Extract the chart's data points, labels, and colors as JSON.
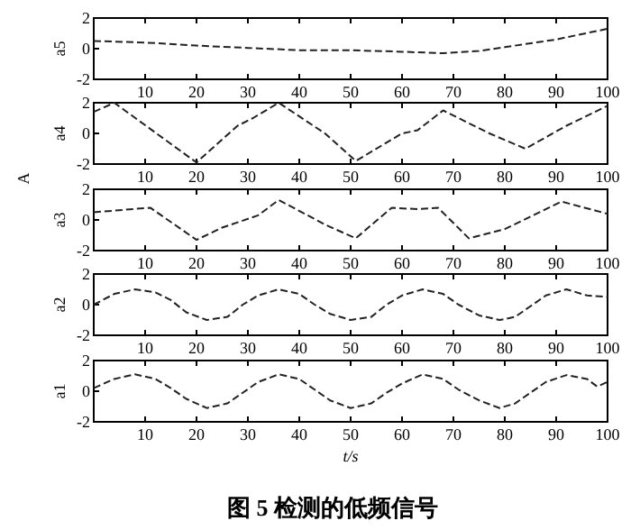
{
  "chart_data": [
    {
      "type": "line",
      "ylabel": "a5",
      "x": [
        0,
        10,
        20,
        30,
        40,
        50,
        60,
        68,
        75,
        80,
        90,
        100
      ],
      "xlim": [
        0,
        100
      ],
      "ylim": [
        -2,
        2
      ],
      "xticks": [
        10,
        20,
        30,
        40,
        50,
        60,
        70,
        80,
        90,
        100
      ],
      "yticks": [
        -2,
        0,
        2
      ],
      "line_style": "dashed",
      "grid": false,
      "series": [
        {
          "color": "#222222",
          "values": [
            0.5,
            0.4,
            0.2,
            0.05,
            -0.1,
            -0.1,
            -0.2,
            -0.3,
            -0.15,
            0.1,
            0.6,
            1.3
          ]
        }
      ]
    },
    {
      "type": "line",
      "ylabel": "a4",
      "x": [
        0,
        4,
        20,
        28,
        31,
        36,
        45,
        51,
        60,
        63,
        68,
        77,
        84,
        92,
        100
      ],
      "xlim": [
        0,
        100
      ],
      "ylim": [
        -2,
        2
      ],
      "xticks": [
        10,
        20,
        30,
        40,
        50,
        60,
        70,
        80,
        90,
        100
      ],
      "yticks": [
        -2,
        0,
        2
      ],
      "line_style": "dashed",
      "grid": false,
      "series": [
        {
          "color": "#222222",
          "values": [
            1.4,
            2,
            -1.9,
            0.5,
            1,
            2,
            0,
            -1.8,
            0,
            0.2,
            1.5,
            0,
            -1,
            0.5,
            1.8
          ]
        }
      ]
    },
    {
      "type": "line",
      "ylabel": "a3",
      "annotations": [
        "A"
      ],
      "x": [
        0,
        11,
        20,
        25,
        32,
        36,
        45,
        51,
        58,
        63,
        67,
        73,
        80,
        91,
        100
      ],
      "xlim": [
        0,
        100
      ],
      "ylim": [
        -2,
        2
      ],
      "xticks": [
        10,
        20,
        30,
        40,
        50,
        60,
        70,
        80,
        90,
        100
      ],
      "yticks": [
        -2,
        0,
        2
      ],
      "line_style": "dashed",
      "grid": false,
      "series": [
        {
          "color": "#222222",
          "values": [
            0.5,
            0.8,
            -1.3,
            -0.5,
            0.3,
            1.3,
            -0.3,
            -1.2,
            0.8,
            0.7,
            0.8,
            -1.2,
            -0.6,
            1.2,
            0.4
          ]
        }
      ]
    },
    {
      "type": "line",
      "ylabel": "a2",
      "x": [
        0,
        4,
        8,
        12,
        15,
        18,
        22,
        26,
        29,
        32,
        36,
        40,
        43,
        46,
        50,
        54,
        57,
        60,
        64,
        68,
        71,
        75,
        79,
        82,
        85,
        88,
        92,
        96,
        100
      ],
      "xlim": [
        0,
        100
      ],
      "ylim": [
        -2,
        2
      ],
      "xticks": [
        10,
        20,
        30,
        40,
        50,
        60,
        70,
        80,
        90,
        100
      ],
      "yticks": [
        -2,
        0,
        2
      ],
      "line_style": "dashed",
      "grid": false,
      "series": [
        {
          "color": "#222222",
          "values": [
            0,
            0.7,
            1,
            0.8,
            0.3,
            -0.5,
            -1,
            -0.8,
            0,
            0.6,
            1,
            0.7,
            0,
            -0.6,
            -1,
            -0.8,
            0,
            0.6,
            1,
            0.7,
            0,
            -0.7,
            -1,
            -0.8,
            -0.1,
            0.6,
            1,
            0.6,
            0.5
          ]
        }
      ]
    },
    {
      "type": "line",
      "ylabel": "a1",
      "xlabel": "t/s",
      "annotations": [
        "图 5  检测的低频信号"
      ],
      "x": [
        0,
        4,
        8,
        12,
        15,
        18,
        22,
        26,
        29,
        32,
        36,
        40,
        43,
        46,
        50,
        54,
        57,
        60,
        64,
        68,
        71,
        75,
        79,
        82,
        85,
        88,
        92,
        96,
        98,
        100
      ],
      "xlim": [
        0,
        100
      ],
      "ylim": [
        -2,
        2
      ],
      "xticks": [
        10,
        20,
        30,
        40,
        50,
        60,
        70,
        80,
        90,
        100
      ],
      "yticks": [
        -2,
        0,
        2
      ],
      "line_style": "dashed",
      "grid": false,
      "series": [
        {
          "color": "#222222",
          "values": [
            0.2,
            0.8,
            1.1,
            0.8,
            0.2,
            -0.5,
            -1.1,
            -0.8,
            -0.1,
            0.6,
            1.1,
            0.8,
            0.1,
            -0.6,
            -1.1,
            -0.8,
            -0.1,
            0.5,
            1.1,
            0.8,
            0.1,
            -0.6,
            -1.1,
            -0.8,
            -0.1,
            0.6,
            1.05,
            0.8,
            0.3,
            0.6
          ]
        }
      ]
    }
  ]
}
